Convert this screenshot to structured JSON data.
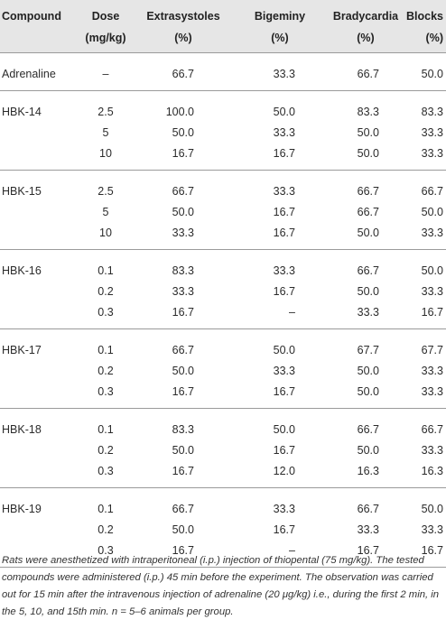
{
  "table": {
    "columns": [
      {
        "name": "Compound"
      },
      {
        "name": "Dose",
        "unit": "(mg/kg)"
      },
      {
        "name": "Extrasystoles",
        "unit": "(%)"
      },
      {
        "name": "Bigeminy",
        "unit": "(%)"
      },
      {
        "name": "Bradycardia",
        "unit": "(%)"
      },
      {
        "name": "Blocks",
        "unit": "(%)"
      }
    ],
    "groups": [
      {
        "compound": "Adrenaline",
        "rows": [
          [
            "–",
            "66.7",
            "33.3",
            "66.7",
            "50.0"
          ]
        ]
      },
      {
        "compound": "HBK-14",
        "rows": [
          [
            "2.5",
            "100.0",
            "50.0",
            "83.3",
            "83.3"
          ],
          [
            "5",
            "50.0",
            "33.3",
            "50.0",
            "33.3"
          ],
          [
            "10",
            "16.7",
            "16.7",
            "50.0",
            "33.3"
          ]
        ]
      },
      {
        "compound": "HBK-15",
        "rows": [
          [
            "2.5",
            "66.7",
            "33.3",
            "66.7",
            "66.7"
          ],
          [
            "5",
            "50.0",
            "16.7",
            "66.7",
            "50.0"
          ],
          [
            "10",
            "33.3",
            "16.7",
            "50.0",
            "33.3"
          ]
        ]
      },
      {
        "compound": "HBK-16",
        "rows": [
          [
            "0.1",
            "83.3",
            "33.3",
            "66.7",
            "50.0"
          ],
          [
            "0.2",
            "33.3",
            "16.7",
            "50.0",
            "33.3"
          ],
          [
            "0.3",
            "16.7",
            "–",
            "33.3",
            "16.7"
          ]
        ]
      },
      {
        "compound": "HBK-17",
        "rows": [
          [
            "0.1",
            "66.7",
            "50.0",
            "67.7",
            "67.7"
          ],
          [
            "0.2",
            "50.0",
            "33.3",
            "50.0",
            "33.3"
          ],
          [
            "0.3",
            "16.7",
            "16.7",
            "50.0",
            "33.3"
          ]
        ]
      },
      {
        "compound": "HBK-18",
        "rows": [
          [
            "0.1",
            "83.3",
            "50.0",
            "66.7",
            "66.7"
          ],
          [
            "0.2",
            "50.0",
            "16.7",
            "50.0",
            "33.3"
          ],
          [
            "0.3",
            "16.7",
            "12.0",
            "16.3",
            "16.3"
          ]
        ]
      },
      {
        "compound": "HBK-19",
        "rows": [
          [
            "0.1",
            "66.7",
            "33.3",
            "66.7",
            "50.0"
          ],
          [
            "0.2",
            "50.0",
            "16.7",
            "33.3",
            "33.3"
          ],
          [
            "0.3",
            "16.7",
            "–",
            "16.7",
            "16.7"
          ]
        ]
      }
    ],
    "footnote": "Rats were anesthetized with intraperitoneal (i.p.) injection of thiopental (75 mg/kg). The tested compounds were administered (i.p.) 45 min before the experiment. The observation was carried out for 15 min after the intravenous injection of adrenaline (20 μg/kg) i.e., during the first 2 min, in the 5, 10, and 15th min. n = 5–6 animals per group."
  }
}
